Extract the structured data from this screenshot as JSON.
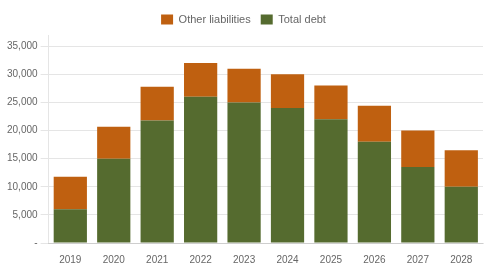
{
  "chart_data": {
    "type": "bar",
    "stacked": true,
    "categories": [
      "2019",
      "2020",
      "2021",
      "2022",
      "2023",
      "2024",
      "2025",
      "2026",
      "2027",
      "2028"
    ],
    "series": [
      {
        "name": "Total debt",
        "color": "#556B2F",
        "values": [
          6000,
          15000,
          21800,
          26000,
          25000,
          24000,
          22000,
          18000,
          13500,
          10000
        ]
      },
      {
        "name": "Other liabilities",
        "color": "#BF6010",
        "values": [
          5800,
          5700,
          6000,
          6000,
          6000,
          6000,
          6000,
          6400,
          6500,
          6500
        ]
      }
    ],
    "ylim": [
      0,
      37000
    ],
    "yticks": [
      {
        "value": 0,
        "label": "-"
      },
      {
        "value": 5000,
        "label": "5,000"
      },
      {
        "value": 10000,
        "label": "10,000"
      },
      {
        "value": 15000,
        "label": "15,000"
      },
      {
        "value": 20000,
        "label": "20,000"
      },
      {
        "value": 25000,
        "label": "25,000"
      },
      {
        "value": 30000,
        "label": "30,000"
      },
      {
        "value": 35000,
        "label": "35,000"
      }
    ],
    "grid": true,
    "legend": "top"
  }
}
